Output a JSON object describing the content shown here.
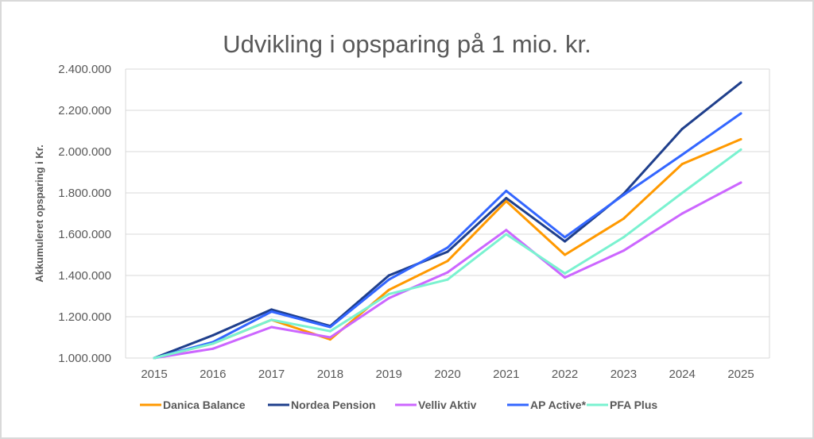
{
  "chart_data": {
    "type": "line",
    "title": "Udvikling i opsparing på 1 mio. kr.",
    "xlabel": "",
    "ylabel": "Akkumuleret opsparing i Kr.",
    "ylim": [
      1000000,
      2400000
    ],
    "yticks": [
      1000000,
      1200000,
      1400000,
      1600000,
      1800000,
      2000000,
      2200000,
      2400000
    ],
    "ytick_labels": [
      "1.000.000",
      "1.200.000",
      "1.400.000",
      "1.600.000",
      "1.800.000",
      "2.000.000",
      "2.200.000",
      "2.400.000"
    ],
    "x": [
      "2015",
      "2016",
      "2017",
      "2018",
      "2019",
      "2020",
      "2021",
      "2022",
      "2023",
      "2024",
      "2025"
    ],
    "grid": "horizontal",
    "legend_position": "bottom",
    "series": [
      {
        "name": "Danica Balance",
        "color": "#FF9900",
        "values": [
          1000000,
          1070000,
          1185000,
          1090000,
          1330000,
          1470000,
          1760000,
          1500000,
          1675000,
          1940000,
          2060000
        ]
      },
      {
        "name": "Nordea Pension",
        "color": "#1F3F8C",
        "values": [
          1000000,
          1110000,
          1235000,
          1155000,
          1400000,
          1515000,
          1775000,
          1565000,
          1795000,
          2110000,
          2335000
        ]
      },
      {
        "name": "Velliv Aktiv",
        "color": "#CC66FF",
        "values": [
          1000000,
          1045000,
          1150000,
          1100000,
          1290000,
          1415000,
          1620000,
          1390000,
          1520000,
          1700000,
          1850000
        ]
      },
      {
        "name": "AP Active*",
        "color": "#3366FF",
        "values": [
          1000000,
          1077000,
          1225000,
          1150000,
          1380000,
          1535000,
          1810000,
          1585000,
          1790000,
          1985000,
          2185000
        ]
      },
      {
        "name": "PFA Plus",
        "color": "#7AF2D0",
        "values": [
          1000000,
          1070000,
          1185000,
          1130000,
          1310000,
          1380000,
          1600000,
          1410000,
          1585000,
          1800000,
          2010000
        ]
      }
    ]
  }
}
